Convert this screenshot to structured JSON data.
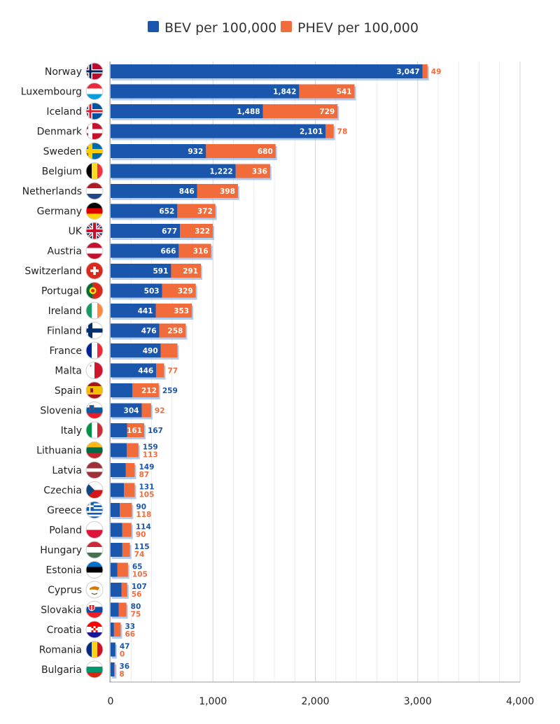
{
  "chart_data": {
    "type": "bar",
    "orientation": "horizontal",
    "stacked": true,
    "xlim": [
      0,
      4000
    ],
    "x_ticks": [
      "0",
      "1,000",
      "2,000",
      "3,000",
      "4,000"
    ],
    "grid": true,
    "legend_position": "top",
    "categories": [
      "Norway",
      "Luxembourg",
      "Iceland",
      "Denmark",
      "Sweden",
      "Belgium",
      "Netherlands",
      "Germany",
      "UK",
      "Austria",
      "Switzerland",
      "Portugal",
      "Ireland",
      "Finland",
      "France",
      "Malta",
      "Spain",
      "Slovenia",
      "Italy",
      "Lithuania",
      "Latvia",
      "Czechia",
      "Greece",
      "Poland",
      "Hungary",
      "Estonia",
      "Cyprus",
      "Slovakia",
      "Croatia",
      "Romania",
      "Bulgaria"
    ],
    "series": [
      {
        "name": "BEV per 100,000",
        "color": "#1a56ab",
        "values": [
          3047,
          1842,
          1488,
          2101,
          932,
          1222,
          846,
          652,
          677,
          666,
          591,
          503,
          441,
          476,
          490,
          446,
          212,
          304,
          161,
          159,
          149,
          131,
          90,
          114,
          115,
          65,
          107,
          80,
          33,
          47,
          36
        ],
        "labels": [
          "3,047",
          "1,842",
          "1,488",
          "2,101",
          "932",
          "1,222",
          "846",
          "652",
          "677",
          "666",
          "591",
          "503",
          "441",
          "476",
          "490",
          "446",
          "212",
          "304",
          "161",
          "159",
          "149",
          "131",
          "90",
          "114",
          "115",
          "65",
          "107",
          "80",
          "33",
          "47",
          "36"
        ]
      },
      {
        "name": "PHEV per 100,000",
        "color": "#f26b3a",
        "values": [
          49,
          541,
          729,
          78,
          680,
          336,
          398,
          372,
          322,
          316,
          291,
          329,
          353,
          258,
          163,
          77,
          259,
          92,
          167,
          113,
          87,
          105,
          118,
          90,
          74,
          105,
          56,
          75,
          66,
          0,
          8
        ],
        "labels": [
          "49",
          "541",
          "729",
          "78",
          "680",
          "336",
          "398",
          "372",
          "322",
          "316",
          "291",
          "329",
          "353",
          "258",
          "163",
          "77",
          "259",
          "92",
          "167",
          "113",
          "87",
          "105",
          "118",
          "90",
          "74",
          "105",
          "56",
          "75",
          "66",
          "0",
          "8"
        ]
      }
    ]
  },
  "flags": [
    {
      "type": "nordic",
      "bg": "#ba0c2f",
      "cross": "#ffffff",
      "inner": "#00205b"
    },
    {
      "type": "h3",
      "c": [
        "#ed2939",
        "#ffffff",
        "#00a1de"
      ]
    },
    {
      "type": "nordic",
      "bg": "#02529c",
      "cross": "#ffffff",
      "inner": "#dc1e35"
    },
    {
      "type": "nordic",
      "bg": "#c8102e",
      "cross": "#ffffff",
      "inner": null
    },
    {
      "type": "nordic",
      "bg": "#006aa7",
      "cross": "#fecc00",
      "inner": null
    },
    {
      "type": "v3",
      "c": [
        "#000000",
        "#fdda24",
        "#ef3340"
      ]
    },
    {
      "type": "h3",
      "c": [
        "#ae1c28",
        "#ffffff",
        "#21468b"
      ]
    },
    {
      "type": "h3",
      "c": [
        "#000000",
        "#dd0000",
        "#ffce00"
      ]
    },
    {
      "type": "uk"
    },
    {
      "type": "h3",
      "c": [
        "#c8102e",
        "#ffffff",
        "#c8102e"
      ]
    },
    {
      "type": "swiss"
    },
    {
      "type": "portugal"
    },
    {
      "type": "v3",
      "c": [
        "#169b62",
        "#ffffff",
        "#ff883e"
      ]
    },
    {
      "type": "nordic",
      "bg": "#ffffff",
      "cross": "#002f6c",
      "inner": null
    },
    {
      "type": "v3",
      "c": [
        "#002395",
        "#ffffff",
        "#ed2939"
      ]
    },
    {
      "type": "malta"
    },
    {
      "type": "spain"
    },
    {
      "type": "slovenia"
    },
    {
      "type": "v3",
      "c": [
        "#009246",
        "#ffffff",
        "#ce2b37"
      ]
    },
    {
      "type": "h3",
      "c": [
        "#fdb913",
        "#006a44",
        "#c1272d"
      ]
    },
    {
      "type": "latvia"
    },
    {
      "type": "czech"
    },
    {
      "type": "greece"
    },
    {
      "type": "h2",
      "c": [
        "#ffffff",
        "#dc143c"
      ]
    },
    {
      "type": "h3",
      "c": [
        "#ce2939",
        "#ffffff",
        "#477050"
      ]
    },
    {
      "type": "h3",
      "c": [
        "#0072ce",
        "#000000",
        "#ffffff"
      ]
    },
    {
      "type": "cyprus"
    },
    {
      "type": "slovakia"
    },
    {
      "type": "croatia"
    },
    {
      "type": "v3",
      "c": [
        "#002b7f",
        "#fcd116",
        "#ce1126"
      ]
    },
    {
      "type": "h3",
      "c": [
        "#ffffff",
        "#00966e",
        "#d62612"
      ]
    }
  ]
}
